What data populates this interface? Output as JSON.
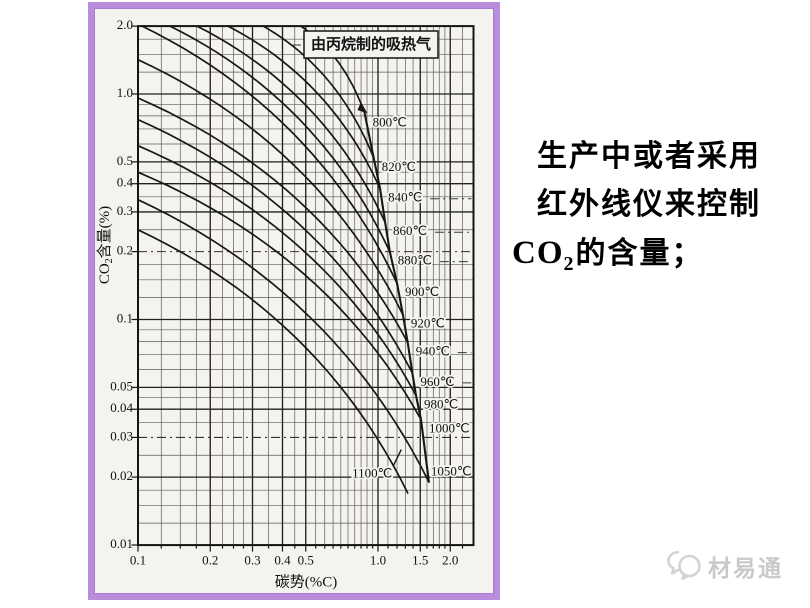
{
  "colors": {
    "frame_border": "#b98ddb",
    "chart_paper": "#f5f3ef",
    "ink": "#181716",
    "watermark_gray": "#c9c9c9"
  },
  "chart_data": {
    "type": "line",
    "title": "由丙烷制的吸热气",
    "xlabel": "碳势(%C)",
    "ylabel_parts": {
      "prefix": "CO",
      "subscript": "2",
      "suffix": "含量(%)"
    },
    "x_scale": "log",
    "y_scale": "log",
    "xlim": [
      0.1,
      2.5
    ],
    "ylim": [
      0.01,
      2.0
    ],
    "grid": true,
    "x_major_values": [
      0.1,
      0.2,
      0.3,
      0.4,
      0.5,
      1.0,
      1.5,
      2.0
    ],
    "x_major_labels": [
      "0.1",
      "0.2",
      "0.3",
      "0.4",
      "0.5",
      "1.0",
      "1.5",
      "2.0"
    ],
    "x_minor_values": [
      0.125,
      0.15,
      0.175,
      0.225,
      0.25,
      0.275,
      0.35,
      0.45,
      0.55,
      0.6,
      0.65,
      0.7,
      0.75,
      0.8,
      0.85,
      0.9,
      0.95,
      1.1,
      1.2,
      1.3,
      1.4,
      1.6,
      1.7,
      1.8,
      1.9,
      2.25
    ],
    "y_major_values": [
      2.0,
      1.0,
      0.5,
      0.4,
      0.3,
      0.2,
      0.1,
      0.05,
      0.04,
      0.03,
      0.02,
      0.01
    ],
    "y_major_labels": [
      "2.0",
      "1.0",
      "0.5",
      "0.4",
      "0.3",
      "0.2",
      "0.1",
      "0.05",
      "0.04",
      "0.03",
      "0.02",
      "0.01"
    ],
    "y_dashdot_values": [
      0.2,
      0.03
    ],
    "y_minor_values": [
      1.75,
      1.5,
      1.25,
      0.9,
      0.8,
      0.7,
      0.6,
      0.45,
      0.35,
      0.25,
      0.175,
      0.15,
      0.125,
      0.09,
      0.08,
      0.07,
      0.06,
      0.045,
      0.035,
      0.025,
      0.0175,
      0.015,
      0.0125
    ],
    "curvature": 0.35,
    "series_note": "Isotherms of CO2 content vs carbon potential; each runs from its start point (on top or left axis) to its end point on the carbon-saturation boundary. Points are [carbon_potential_%C, CO2_%].",
    "series": [
      {
        "temp_c": 800,
        "label": "800℃",
        "start": [
          0.476,
          2.0
        ],
        "end": [
          0.88,
          0.82
        ]
      },
      {
        "temp_c": 820,
        "label": "820℃",
        "start": [
          0.333,
          2.0
        ],
        "end": [
          0.96,
          0.52
        ]
      },
      {
        "temp_c": 840,
        "label": "840℃",
        "start": [
          0.237,
          2.0
        ],
        "end": [
          1.02,
          0.38
        ],
        "leader": true
      },
      {
        "temp_c": 860,
        "label": "860℃",
        "start": [
          0.176,
          2.0
        ],
        "end": [
          1.07,
          0.27
        ],
        "leader": true
      },
      {
        "temp_c": 880,
        "label": "880℃",
        "start": [
          0.136,
          2.0
        ],
        "end": [
          1.12,
          0.2
        ],
        "leader": true
      },
      {
        "temp_c": 900,
        "label": "900℃",
        "start": [
          0.104,
          2.0
        ],
        "end": [
          1.2,
          0.145
        ]
      },
      {
        "temp_c": 920,
        "label": "920℃",
        "start": [
          0.1,
          1.42
        ],
        "end": [
          1.27,
          0.105
        ]
      },
      {
        "temp_c": 940,
        "label": "940℃",
        "start": [
          0.1,
          0.96
        ],
        "end": [
          1.33,
          0.079
        ],
        "leader": true
      },
      {
        "temp_c": 960,
        "label": "960℃",
        "start": [
          0.1,
          0.77
        ],
        "end": [
          1.39,
          0.058
        ],
        "leader": true
      },
      {
        "temp_c": 980,
        "label": "980℃",
        "start": [
          0.1,
          0.59
        ],
        "end": [
          1.44,
          0.046
        ]
      },
      {
        "temp_c": 1000,
        "label": "1000℃",
        "start": [
          0.1,
          0.45
        ],
        "end": [
          1.51,
          0.036
        ]
      },
      {
        "temp_c": 1050,
        "label": "1050℃",
        "start": [
          0.1,
          0.34
        ],
        "end": [
          1.63,
          0.019
        ],
        "label_at": [
          1.66,
          0.021
        ]
      },
      {
        "temp_c": 1100,
        "label": "1100℃",
        "start": [
          0.1,
          0.25
        ],
        "end": [
          1.33,
          0.017
        ],
        "label_at": [
          0.78,
          0.0205
        ],
        "pointer": [
          [
            1.16,
            0.0225
          ],
          [
            1.25,
            0.0265
          ]
        ]
      }
    ],
    "saturation_boundary_temps": [
      800,
      820,
      840,
      860,
      880,
      900,
      920,
      940,
      960,
      980,
      1000,
      1050
    ]
  },
  "caption": {
    "lines": [
      "生产中或者采用",
      "红外线仪来控制"
    ],
    "co2_line": {
      "prefix": "CO",
      "subscript": "2",
      "suffix": "的含量；"
    }
  },
  "watermark": {
    "text": "材易通"
  }
}
